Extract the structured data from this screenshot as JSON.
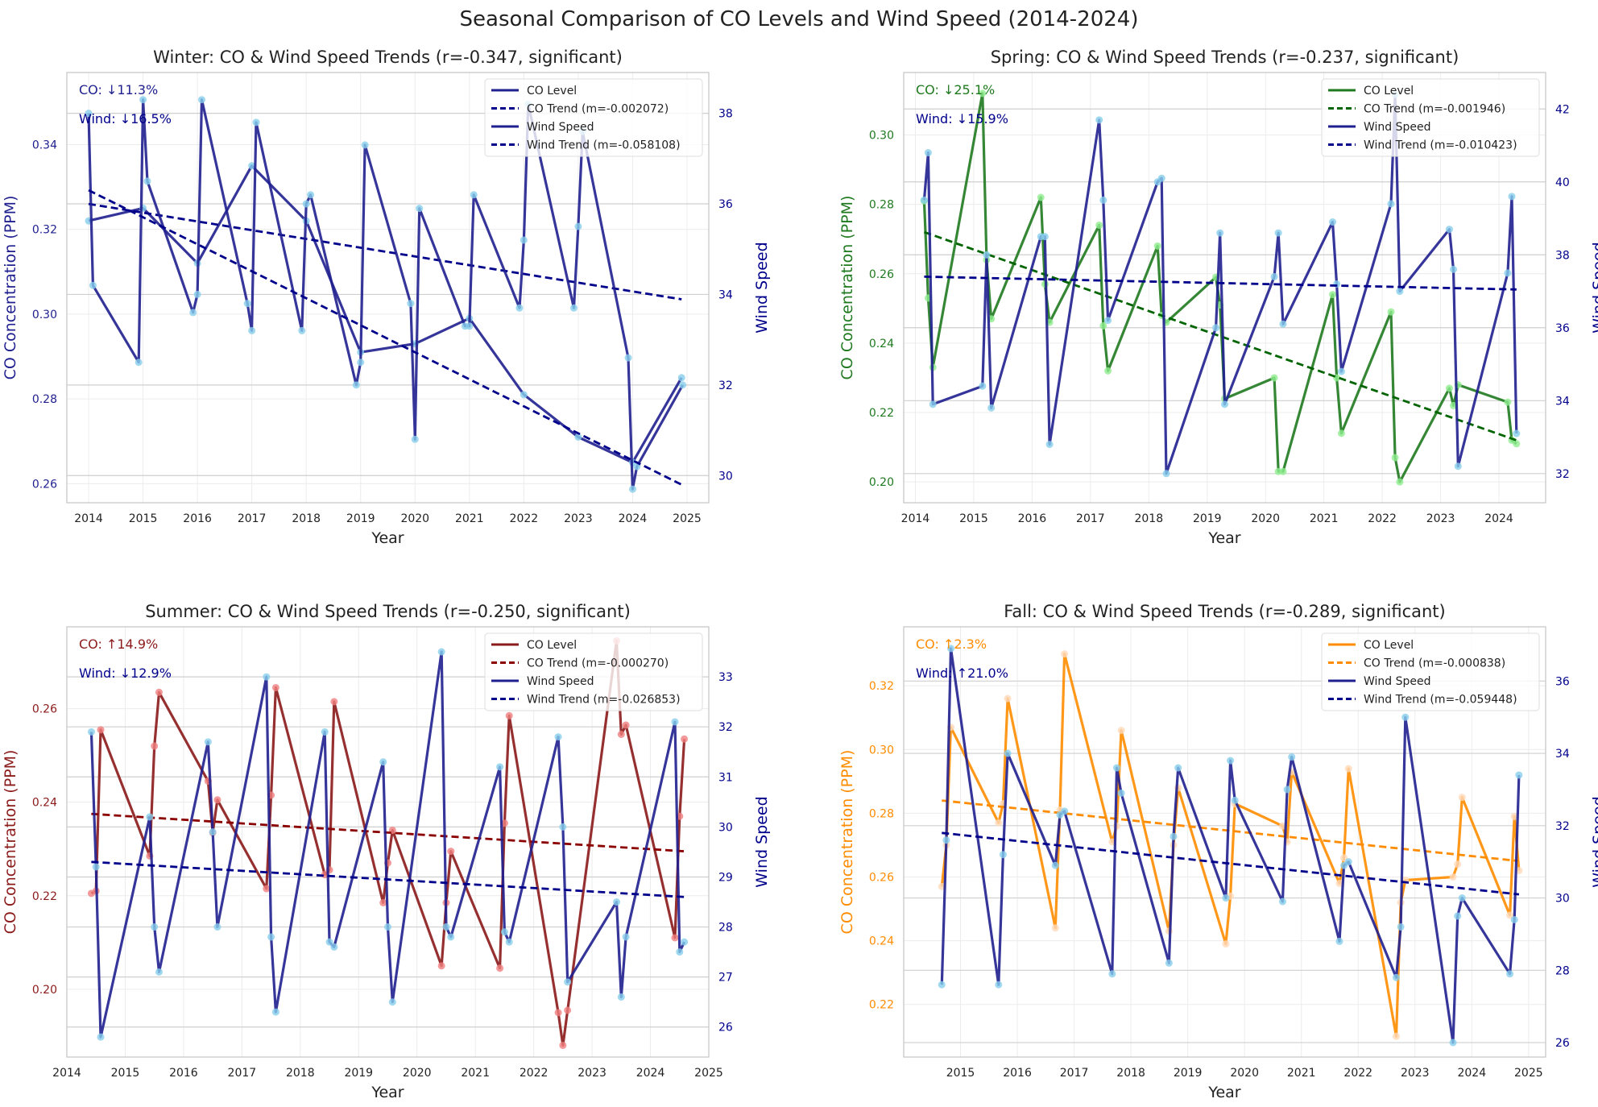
{
  "figure": {
    "title": "Seasonal Comparison of CO Levels and Wind Speed (2014-2024)"
  },
  "colors": {
    "wind": "#1f1f8f",
    "wind_trend": "#00008b",
    "wind_marker": "#87ceeb",
    "axis_text": "#222222"
  },
  "chart_data": [
    {
      "type": "line",
      "title": "Winter: CO & Wind Speed Trends (r=-0.347, significant)",
      "xlabel": "Year",
      "ylabel": "CO Concentration (PPM)",
      "y2label": "Wind Speed",
      "xlim": [
        2013.6,
        2025.4
      ],
      "ylim": [
        0.2555,
        0.357
      ],
      "y2lim": [
        29.4,
        38.9
      ],
      "xticks": [
        2014,
        2015,
        2016,
        2017,
        2018,
        2019,
        2020,
        2021,
        2022,
        2023,
        2024,
        2025
      ],
      "yticks": [
        0.26,
        0.28,
        0.3,
        0.32,
        0.34
      ],
      "ytick_labels": [
        "0.26",
        "0.28",
        "0.30",
        "0.32",
        "0.34"
      ],
      "y2ticks": [
        30,
        32,
        34,
        36,
        38
      ],
      "y2tick_labels": [
        "30",
        "32",
        "34",
        "36",
        "38"
      ],
      "co_color": "#1f1f8f",
      "co_trend_color": "#00008b",
      "co_marker": "#87ceeb",
      "annotations": {
        "co": "CO: ↓11.3%",
        "wind": "Wind: ↓16.5%"
      },
      "legend": [
        "CO Level",
        "CO Trend (m=-0.002072)",
        "Wind Speed",
        "Wind Trend (m=-0.058108)"
      ],
      "co": {
        "x": [
          2014.0,
          2015.0,
          2016.0,
          2017.0,
          2018.0,
          2019.0,
          2020.0,
          2021.0,
          2022.0,
          2023.0,
          2024.0,
          2024.9
        ],
        "y": [
          0.322,
          0.325,
          0.312,
          0.335,
          0.322,
          0.291,
          0.293,
          0.299,
          0.281,
          0.271,
          0.265,
          0.285
        ]
      },
      "co_trend": {
        "x": [
          2014.0,
          2024.9
        ],
        "y": [
          0.326,
          0.3035
        ]
      },
      "wind": {
        "x": [
          2014.0,
          2014.08,
          2014.92,
          2015.0,
          2015.08,
          2015.92,
          2016.0,
          2016.08,
          2016.92,
          2017.0,
          2017.08,
          2017.92,
          2018.0,
          2018.08,
          2018.92,
          2019.0,
          2019.08,
          2019.92,
          2020.0,
          2020.08,
          2020.92,
          2021.0,
          2021.08,
          2021.92,
          2022.0,
          2022.08,
          2022.92,
          2023.0,
          2023.08,
          2023.92,
          2024.0,
          2024.08,
          2024.92
        ],
        "y": [
          38.0,
          34.2,
          32.5,
          38.3,
          36.5,
          33.6,
          34.0,
          38.3,
          33.8,
          33.2,
          37.8,
          33.2,
          36.0,
          36.2,
          32.0,
          32.5,
          37.3,
          33.8,
          30.8,
          35.9,
          33.3,
          33.3,
          36.2,
          33.7,
          35.2,
          38.2,
          33.7,
          35.5,
          37.6,
          32.6,
          29.7,
          30.2,
          32.0
        ]
      },
      "wind_trend": {
        "x": [
          2014.0,
          2024.9
        ],
        "y": [
          36.3,
          29.8
        ]
      }
    },
    {
      "type": "line",
      "title": "Spring: CO & Wind Speed Trends (r=-0.237, significant)",
      "xlabel": "Year",
      "ylabel": "CO Concentration (PPM)",
      "y2label": "Wind Speed",
      "xlim": [
        2013.8,
        2024.8
      ],
      "ylim": [
        0.194,
        0.318
      ],
      "y2lim": [
        31.2,
        43.0
      ],
      "xticks": [
        2014,
        2015,
        2016,
        2017,
        2018,
        2019,
        2020,
        2021,
        2022,
        2023,
        2024
      ],
      "yticks": [
        0.2,
        0.22,
        0.24,
        0.26,
        0.28,
        0.3
      ],
      "ytick_labels": [
        "0.20",
        "0.22",
        "0.24",
        "0.26",
        "0.28",
        "0.30"
      ],
      "y2ticks": [
        32,
        34,
        36,
        38,
        40,
        42
      ],
      "y2tick_labels": [
        "32",
        "34",
        "36",
        "38",
        "40",
        "42"
      ],
      "co_color": "#1f7a1f",
      "co_trend_color": "#006400",
      "co_marker": "#90ee90",
      "annotations": {
        "co": "CO: ↓25.1%",
        "wind": "Wind: ↓15.9%"
      },
      "legend": [
        "CO Level",
        "CO Trend (m=-0.001946)",
        "Wind Speed",
        "Wind Trend (m=-0.010423)"
      ],
      "co": {
        "x": [
          2014.15,
          2014.22,
          2014.3,
          2015.15,
          2015.22,
          2015.3,
          2016.15,
          2016.22,
          2016.3,
          2017.15,
          2017.22,
          2017.3,
          2018.15,
          2018.22,
          2018.3,
          2019.15,
          2019.22,
          2019.3,
          2020.15,
          2020.22,
          2020.3,
          2021.15,
          2021.22,
          2021.3,
          2022.15,
          2022.22,
          2022.3,
          2023.15,
          2023.22,
          2023.3,
          2024.15,
          2024.22,
          2024.3
        ],
        "y": [
          0.281,
          0.253,
          0.233,
          0.312,
          0.264,
          0.247,
          0.282,
          0.257,
          0.246,
          0.274,
          0.245,
          0.232,
          0.268,
          0.248,
          0.246,
          0.259,
          0.251,
          0.224,
          0.23,
          0.203,
          0.203,
          0.254,
          0.23,
          0.214,
          0.249,
          0.207,
          0.2,
          0.227,
          0.222,
          0.228,
          0.223,
          0.212,
          0.211
        ]
      },
      "co_trend": {
        "x": [
          2014.15,
          2024.3
        ],
        "y": [
          0.272,
          0.212
        ]
      },
      "wind": {
        "x": [
          2014.15,
          2014.22,
          2014.3,
          2015.15,
          2015.22,
          2015.3,
          2016.15,
          2016.22,
          2016.3,
          2017.15,
          2017.22,
          2017.3,
          2018.15,
          2018.22,
          2018.3,
          2019.15,
          2019.22,
          2019.3,
          2020.15,
          2020.22,
          2020.3,
          2021.15,
          2021.22,
          2021.3,
          2022.15,
          2022.22,
          2022.3,
          2023.15,
          2023.22,
          2023.3,
          2024.15,
          2024.22,
          2024.3
        ],
        "y": [
          39.5,
          40.8,
          33.9,
          34.4,
          38.0,
          33.8,
          38.5,
          38.5,
          32.8,
          41.7,
          39.5,
          36.2,
          40.0,
          40.1,
          32.0,
          36.0,
          38.6,
          33.9,
          37.4,
          38.6,
          36.1,
          38.9,
          37.2,
          34.8,
          39.4,
          42.4,
          37.0,
          38.7,
          37.6,
          32.2,
          37.5,
          39.6,
          33.1
        ]
      },
      "wind_trend": {
        "x": [
          2014.15,
          2024.3
        ],
        "y": [
          37.4,
          37.05
        ]
      }
    },
    {
      "type": "line",
      "title": "Summer: CO & Wind Speed Trends (r=-0.250, significant)",
      "xlabel": "Year",
      "ylabel": "CO Concentration (PPM)",
      "y2label": "Wind Speed",
      "xlim": [
        2014.0,
        2025.0
      ],
      "ylim": [
        0.1855,
        0.2775
      ],
      "y2lim": [
        25.4,
        34.0
      ],
      "xticks": [
        2014,
        2015,
        2016,
        2017,
        2018,
        2019,
        2020,
        2021,
        2022,
        2023,
        2024,
        2025
      ],
      "yticks": [
        0.2,
        0.22,
        0.24,
        0.26
      ],
      "ytick_labels": [
        "0.20",
        "0.22",
        "0.24",
        "0.26"
      ],
      "y2ticks": [
        26,
        27,
        28,
        29,
        30,
        31,
        32,
        33
      ],
      "y2tick_labels": [
        "26",
        "27",
        "28",
        "29",
        "30",
        "31",
        "32",
        "33"
      ],
      "co_color": "#8b1a1a",
      "co_trend_color": "#8b0000",
      "co_marker": "#f08080",
      "annotations": {
        "co": "CO: ↑14.9%",
        "wind": "Wind: ↓12.9%"
      },
      "legend": [
        "CO Level",
        "CO Trend (m=-0.000270)",
        "Wind Speed",
        "Wind Trend (m=-0.026853)"
      ],
      "co": {
        "x": [
          2014.42,
          2014.5,
          2014.58,
          2015.42,
          2015.5,
          2015.58,
          2016.42,
          2016.5,
          2016.58,
          2017.42,
          2017.5,
          2017.58,
          2018.42,
          2018.5,
          2018.58,
          2019.42,
          2019.5,
          2019.58,
          2020.42,
          2020.5,
          2020.58,
          2021.42,
          2021.5,
          2021.58,
          2022.42,
          2022.5,
          2022.58,
          2023.42,
          2023.5,
          2023.58,
          2024.42,
          2024.5,
          2024.58
        ],
        "y": [
          0.2205,
          0.221,
          0.2555,
          0.2285,
          0.252,
          0.2635,
          0.2445,
          0.2335,
          0.2405,
          0.2215,
          0.2415,
          0.2645,
          0.2245,
          0.2255,
          0.2615,
          0.2185,
          0.227,
          0.234,
          0.205,
          0.2185,
          0.2295,
          0.2045,
          0.2355,
          0.2585,
          0.195,
          0.188,
          0.1955,
          0.2745,
          0.2545,
          0.2565,
          0.211,
          0.237,
          0.2535
        ]
      },
      "co_trend": {
        "x": [
          2014.42,
          2024.58
        ],
        "y": [
          0.2375,
          0.2295
        ]
      },
      "wind": {
        "x": [
          2014.42,
          2014.5,
          2014.58,
          2015.42,
          2015.5,
          2015.58,
          2016.42,
          2016.5,
          2016.58,
          2017.42,
          2017.5,
          2017.58,
          2018.42,
          2018.5,
          2018.58,
          2019.42,
          2019.5,
          2019.58,
          2020.42,
          2020.5,
          2020.58,
          2021.42,
          2021.5,
          2021.58,
          2022.42,
          2022.5,
          2022.58,
          2023.42,
          2023.5,
          2023.58,
          2024.42,
          2024.5,
          2024.58
        ],
        "y": [
          31.9,
          29.2,
          25.8,
          30.2,
          28.0,
          27.1,
          31.7,
          29.9,
          28.0,
          33.0,
          27.8,
          26.3,
          31.9,
          27.7,
          27.6,
          31.3,
          28.0,
          26.5,
          33.5,
          28.0,
          27.8,
          31.2,
          27.9,
          27.7,
          31.8,
          30.0,
          26.9,
          28.5,
          26.6,
          27.8,
          32.1,
          27.5,
          27.7
        ]
      },
      "wind_trend": {
        "x": [
          2014.42,
          2024.58
        ],
        "y": [
          29.3,
          28.6
        ]
      }
    },
    {
      "type": "line",
      "title": "Fall: CO & Wind Speed Trends (r=-0.289, significant)",
      "xlabel": "Year",
      "ylabel": "CO Concentration (PPM)",
      "y2label": "Wind Speed",
      "xlim": [
        2014.0,
        2025.3
      ],
      "ylim": [
        0.2035,
        0.3385
      ],
      "y2lim": [
        25.6,
        37.5
      ],
      "xticks": [
        2015,
        2016,
        2017,
        2018,
        2019,
        2020,
        2021,
        2022,
        2023,
        2024,
        2025
      ],
      "yticks": [
        0.22,
        0.24,
        0.26,
        0.28,
        0.3,
        0.32
      ],
      "ytick_labels": [
        "0.22",
        "0.24",
        "0.26",
        "0.28",
        "0.30",
        "0.32"
      ],
      "y2ticks": [
        26,
        28,
        30,
        32,
        34,
        36
      ],
      "y2tick_labels": [
        "26",
        "28",
        "30",
        "32",
        "34",
        "36"
      ],
      "co_color": "#ff8c00",
      "co_trend_color": "#ff8c00",
      "co_marker": "#ffdab9",
      "annotations": {
        "co": "CO: ↑2.3%",
        "wind": "Wind: ↑21.0%"
      },
      "legend": [
        "CO Level",
        "CO Trend (m=-0.000838)",
        "Wind Speed",
        "Wind Trend (m=-0.059448)"
      ],
      "co": {
        "x": [
          2014.67,
          2014.75,
          2014.83,
          2015.67,
          2015.75,
          2015.83,
          2016.67,
          2016.75,
          2016.83,
          2017.67,
          2017.75,
          2017.83,
          2018.67,
          2018.75,
          2018.83,
          2019.67,
          2019.75,
          2019.83,
          2020.67,
          2020.75,
          2020.83,
          2021.67,
          2021.75,
          2021.83,
          2022.67,
          2022.75,
          2022.83,
          2023.67,
          2023.75,
          2023.83,
          2024.67,
          2024.75,
          2024.83
        ],
        "y": [
          0.257,
          0.27,
          0.307,
          0.277,
          0.283,
          0.316,
          0.244,
          0.281,
          0.33,
          0.271,
          0.276,
          0.306,
          0.243,
          0.27,
          0.288,
          0.239,
          0.254,
          0.283,
          0.276,
          0.271,
          0.293,
          0.258,
          0.266,
          0.294,
          0.21,
          0.252,
          0.259,
          0.26,
          0.264,
          0.285,
          0.248,
          0.279,
          0.262
        ]
      },
      "co_trend": {
        "x": [
          2014.67,
          2024.83
        ],
        "y": [
          0.284,
          0.265
        ]
      },
      "wind": {
        "x": [
          2014.67,
          2014.75,
          2014.83,
          2015.67,
          2015.75,
          2015.83,
          2016.67,
          2016.75,
          2016.83,
          2017.67,
          2017.75,
          2017.83,
          2018.67,
          2018.75,
          2018.83,
          2019.67,
          2019.75,
          2019.83,
          2020.67,
          2020.75,
          2020.83,
          2021.67,
          2021.75,
          2021.83,
          2022.67,
          2022.75,
          2022.83,
          2023.67,
          2023.75,
          2023.83,
          2024.67,
          2024.75,
          2024.83
        ],
        "y": [
          27.6,
          31.6,
          36.9,
          27.6,
          31.2,
          34.0,
          30.9,
          32.3,
          32.4,
          27.9,
          33.6,
          32.9,
          28.2,
          31.7,
          33.6,
          30.0,
          33.8,
          32.7,
          29.9,
          33.0,
          33.9,
          28.8,
          30.9,
          31.0,
          27.8,
          29.2,
          35.0,
          26.0,
          29.5,
          30.0,
          27.9,
          29.4,
          33.4
        ]
      },
      "wind_trend": {
        "x": [
          2014.67,
          2024.83
        ],
        "y": [
          31.8,
          30.1
        ]
      }
    }
  ]
}
